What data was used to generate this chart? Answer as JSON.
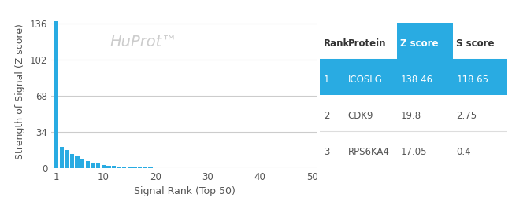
{
  "bar_color": "#29ABE2",
  "background_color": "#ffffff",
  "plot_bg_color": "#ffffff",
  "grid_color": "#cccccc",
  "title_watermark": "HuProt™",
  "watermark_color": "#cccccc",
  "xlabel": "Signal Rank (Top 50)",
  "ylabel": "Strength of Signal (Z score)",
  "yticks": [
    0,
    34,
    68,
    102,
    136
  ],
  "xticks": [
    1,
    10,
    20,
    30,
    40,
    50
  ],
  "xlim": [
    0,
    51
  ],
  "ylim": [
    0,
    145
  ],
  "n_bars": 50,
  "bar1_height": 138.46,
  "bar2_height": 19.8,
  "bar3_height": 17.05,
  "decay_factor": 0.82,
  "table_data": [
    {
      "rank": "1",
      "protein": "ICOSLG",
      "zscore": "138.46",
      "sscore": "118.65",
      "highlight": true
    },
    {
      "rank": "2",
      "protein": "CDK9",
      "zscore": "19.8",
      "sscore": "2.75",
      "highlight": false
    },
    {
      "rank": "3",
      "protein": "RPS6KA4",
      "zscore": "17.05",
      "sscore": "0.4",
      "highlight": false
    }
  ],
  "table_header_color": "#29ABE2",
  "table_highlight_color": "#29ABE2",
  "table_header_text_color": "#ffffff",
  "table_highlight_text_color": "#ffffff",
  "table_normal_text_color": "#555555",
  "table_header_labels": [
    "Rank",
    "Protein",
    "Z score",
    "S score"
  ],
  "table_font_size": 8.5,
  "ylabel_fontsize": 9,
  "xlabel_fontsize": 9,
  "tick_fontsize": 8.5
}
